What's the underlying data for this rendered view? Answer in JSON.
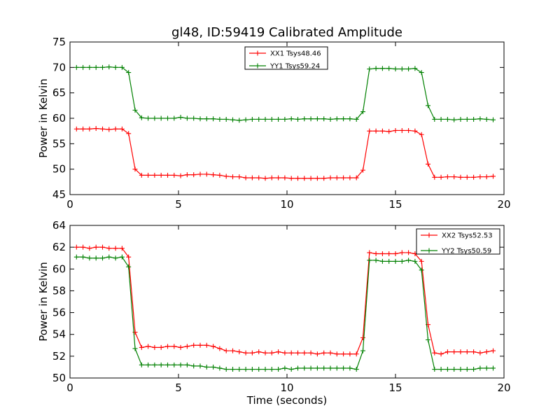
{
  "title": "gl48, ID:59419 Calibrated Amplitude",
  "colors": {
    "red": "#ff0000",
    "green": "#008000"
  },
  "chart_data": [
    {
      "type": "line",
      "title": "gl48, ID:59419 Calibrated Amplitude",
      "xlabel": "",
      "ylabel": "Power in Kelvin",
      "xlim": [
        0,
        20
      ],
      "ylim": [
        45,
        75
      ],
      "xticks": [
        "0",
        "5",
        "10",
        "15",
        "20"
      ],
      "yticks": [
        "45",
        "50",
        "55",
        "60",
        "65",
        "70",
        "75"
      ],
      "legend_position": "top-center",
      "x": [
        0.3,
        0.6,
        0.9,
        1.2,
        1.5,
        1.8,
        2.1,
        2.4,
        2.7,
        3.0,
        3.3,
        3.6,
        3.9,
        4.2,
        4.5,
        4.8,
        5.1,
        5.4,
        5.7,
        6.0,
        6.3,
        6.6,
        6.9,
        7.2,
        7.5,
        7.8,
        8.1,
        8.4,
        8.7,
        9.0,
        9.3,
        9.6,
        9.9,
        10.2,
        10.5,
        10.8,
        11.1,
        11.4,
        11.7,
        12.0,
        12.3,
        12.6,
        12.9,
        13.2,
        13.5,
        13.8,
        14.1,
        14.4,
        14.7,
        15.0,
        15.3,
        15.6,
        15.9,
        16.2,
        16.5,
        16.8,
        17.1,
        17.4,
        17.7,
        18.0,
        18.3,
        18.6,
        18.9,
        19.2,
        19.5
      ],
      "series": [
        {
          "name": "XX1 Tsys48.46",
          "color": "#ff0000",
          "values": [
            57.9,
            57.9,
            57.9,
            58.0,
            57.9,
            57.8,
            57.9,
            57.9,
            57.0,
            50.0,
            48.8,
            48.8,
            48.8,
            48.8,
            48.8,
            48.8,
            48.7,
            48.9,
            48.9,
            49.0,
            49.0,
            48.9,
            48.8,
            48.6,
            48.5,
            48.5,
            48.3,
            48.3,
            48.3,
            48.2,
            48.3,
            48.3,
            48.3,
            48.2,
            48.2,
            48.2,
            48.2,
            48.2,
            48.2,
            48.3,
            48.3,
            48.3,
            48.3,
            48.3,
            49.8,
            57.5,
            57.5,
            57.5,
            57.4,
            57.6,
            57.6,
            57.6,
            57.5,
            56.8,
            51.0,
            48.4,
            48.4,
            48.5,
            48.5,
            48.4,
            48.4,
            48.4,
            48.5,
            48.5,
            48.6
          ]
        },
        {
          "name": "YY1 Tsys59.24",
          "color": "#008000",
          "values": [
            70.0,
            70.0,
            70.0,
            70.0,
            70.0,
            70.1,
            70.0,
            70.0,
            69.0,
            61.6,
            60.1,
            60.0,
            60.0,
            60.0,
            60.0,
            60.0,
            60.2,
            60.0,
            60.0,
            59.9,
            59.9,
            59.9,
            59.8,
            59.8,
            59.7,
            59.6,
            59.7,
            59.8,
            59.8,
            59.8,
            59.8,
            59.8,
            59.8,
            59.9,
            59.8,
            59.9,
            59.9,
            59.9,
            59.9,
            59.8,
            59.9,
            59.9,
            59.9,
            59.8,
            61.3,
            69.7,
            69.8,
            69.8,
            69.8,
            69.7,
            69.7,
            69.7,
            69.8,
            69.0,
            62.5,
            59.8,
            59.8,
            59.8,
            59.7,
            59.8,
            59.8,
            59.8,
            59.9,
            59.8,
            59.7
          ]
        }
      ]
    },
    {
      "type": "line",
      "title": "",
      "xlabel": "Time (seconds)",
      "ylabel": "Power in Kelvin",
      "xlim": [
        0,
        20
      ],
      "ylim": [
        50,
        64
      ],
      "xticks": [
        "0",
        "5",
        "10",
        "15",
        "20"
      ],
      "yticks": [
        "50",
        "52",
        "54",
        "56",
        "58",
        "60",
        "62",
        "64"
      ],
      "legend_position": "top-right",
      "x": [
        0.3,
        0.6,
        0.9,
        1.2,
        1.5,
        1.8,
        2.1,
        2.4,
        2.7,
        3.0,
        3.3,
        3.6,
        3.9,
        4.2,
        4.5,
        4.8,
        5.1,
        5.4,
        5.7,
        6.0,
        6.3,
        6.6,
        6.9,
        7.2,
        7.5,
        7.8,
        8.1,
        8.4,
        8.7,
        9.0,
        9.3,
        9.6,
        9.9,
        10.2,
        10.5,
        10.8,
        11.1,
        11.4,
        11.7,
        12.0,
        12.3,
        12.6,
        12.9,
        13.2,
        13.5,
        13.8,
        14.1,
        14.4,
        14.7,
        15.0,
        15.3,
        15.6,
        15.9,
        16.2,
        16.5,
        16.8,
        17.1,
        17.4,
        17.7,
        18.0,
        18.3,
        18.6,
        18.9,
        19.2,
        19.5
      ],
      "series": [
        {
          "name": "XX2 Tsys52.53",
          "color": "#ff0000",
          "values": [
            62.0,
            62.0,
            61.9,
            62.0,
            62.0,
            61.9,
            61.9,
            61.9,
            61.1,
            54.2,
            52.8,
            52.9,
            52.8,
            52.8,
            52.9,
            52.9,
            52.8,
            52.9,
            53.0,
            53.0,
            53.0,
            52.9,
            52.7,
            52.5,
            52.5,
            52.4,
            52.3,
            52.3,
            52.4,
            52.3,
            52.3,
            52.4,
            52.3,
            52.3,
            52.3,
            52.3,
            52.3,
            52.2,
            52.3,
            52.3,
            52.2,
            52.2,
            52.2,
            52.2,
            53.7,
            61.5,
            61.4,
            61.4,
            61.4,
            61.4,
            61.5,
            61.5,
            61.4,
            60.7,
            54.9,
            52.3,
            52.2,
            52.4,
            52.4,
            52.4,
            52.4,
            52.4,
            52.3,
            52.4,
            52.5
          ]
        },
        {
          "name": "YY2 Tsys50.59",
          "color": "#008000",
          "values": [
            61.1,
            61.1,
            61.0,
            61.0,
            61.0,
            61.1,
            61.0,
            61.1,
            60.2,
            52.7,
            51.2,
            51.2,
            51.2,
            51.2,
            51.2,
            51.2,
            51.2,
            51.2,
            51.1,
            51.1,
            51.0,
            51.0,
            50.9,
            50.8,
            50.8,
            50.8,
            50.8,
            50.8,
            50.8,
            50.8,
            50.8,
            50.8,
            50.9,
            50.8,
            50.9,
            50.9,
            50.9,
            50.9,
            50.9,
            50.9,
            50.9,
            50.9,
            50.9,
            50.8,
            52.5,
            60.8,
            60.8,
            60.7,
            60.7,
            60.7,
            60.7,
            60.8,
            60.7,
            59.9,
            53.5,
            50.8,
            50.8,
            50.8,
            50.8,
            50.8,
            50.8,
            50.8,
            50.9,
            50.9,
            50.9
          ]
        }
      ]
    }
  ]
}
